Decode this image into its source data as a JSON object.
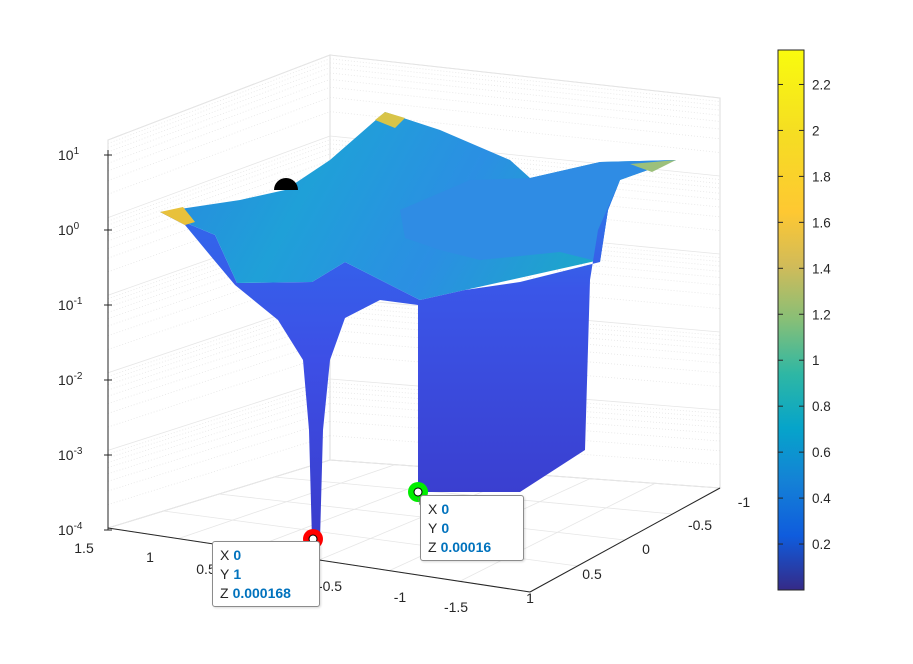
{
  "chart_data": {
    "type": "surface",
    "title": "",
    "xlabel": "",
    "ylabel": "",
    "zlabel": "",
    "x_ticks": [
      "1.5",
      "1",
      "0.5",
      "0",
      "-0.5",
      "-1",
      "-1.5"
    ],
    "y_ticks": [
      "-1",
      "-0.5",
      "0",
      "0.5",
      "1"
    ],
    "z_ticks": [
      {
        "base": "10",
        "exp": "1"
      },
      {
        "base": "10",
        "exp": "0"
      },
      {
        "base": "10",
        "exp": "-1"
      },
      {
        "base": "10",
        "exp": "-2"
      },
      {
        "base": "10",
        "exp": "-3"
      },
      {
        "base": "10",
        "exp": "-4"
      }
    ],
    "zscale": "log",
    "zlim": [
      0.0001,
      10
    ],
    "grid": true,
    "colormap": "parula",
    "colorbar": {
      "range": [
        0,
        2.35
      ],
      "ticks": [
        "2.2",
        "2",
        "1.8",
        "1.6",
        "1.4",
        "1.2",
        "1",
        "0.8",
        "0.6",
        "0.4",
        "0.2"
      ],
      "tick_values": [
        2.2,
        2,
        1.8,
        1.6,
        1.4,
        1.2,
        1,
        0.8,
        0.6,
        0.4,
        0.2
      ]
    },
    "datatips": [
      {
        "x_label": "X",
        "x": "0",
        "y_label": "Y",
        "y": "1",
        "z_label": "Z",
        "z": "0.000168",
        "marker_color": "#ff0000"
      },
      {
        "x_label": "X",
        "x": "0",
        "y_label": "Y",
        "y": "0",
        "z_label": "Z",
        "z": "0.00016",
        "marker_color": "#00ee00"
      }
    ],
    "extra_marker_color": "#000000"
  }
}
